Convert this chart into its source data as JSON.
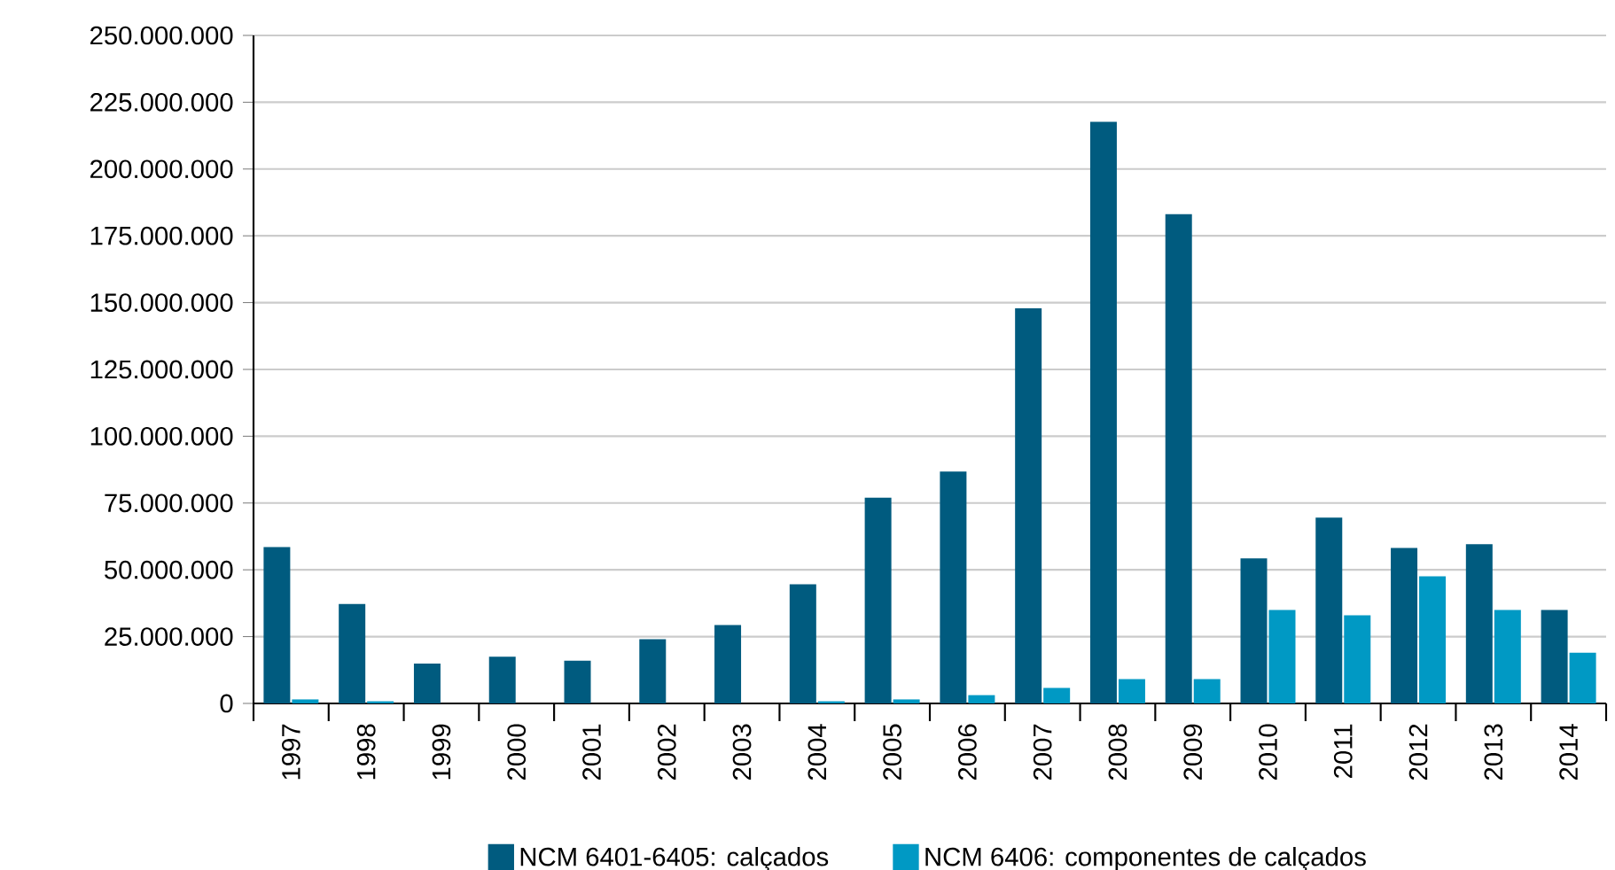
{
  "chart_data": {
    "type": "bar",
    "categories": [
      "1997",
      "1998",
      "1999",
      "2000",
      "2001",
      "2002",
      "2003",
      "2004",
      "2005",
      "2006",
      "2007",
      "2008",
      "2009",
      "2010",
      "2011",
      "2012",
      "2013",
      "2014"
    ],
    "series": [
      {
        "name": "NCM 6401-6405: calçados",
        "color": "#005b7f",
        "values": [
          58500000,
          37200000,
          14900000,
          17500000,
          16000000,
          24000000,
          29300000,
          44600000,
          77000000,
          86800000,
          147900000,
          217700000,
          183100000,
          54300000,
          69500000,
          58200000,
          59600000,
          35000000
        ]
      },
      {
        "name": "NCM 6406: componentes de calçados",
        "color": "#0099c4",
        "values": [
          1500000,
          800000,
          0,
          0,
          0,
          0,
          0,
          800000,
          1500000,
          3100000,
          5800000,
          9100000,
          9100000,
          35000000,
          33000000,
          47600000,
          35000000,
          19000000
        ]
      }
    ],
    "ylim": [
      0,
      250000000
    ],
    "yticks": [
      {
        "value": 0,
        "label": "0"
      },
      {
        "value": 25000000,
        "label": "25.000.000"
      },
      {
        "value": 50000000,
        "label": "50.000.000"
      },
      {
        "value": 75000000,
        "label": "75.000.000"
      },
      {
        "value": 100000000,
        "label": "100.000.000"
      },
      {
        "value": 125000000,
        "label": "125.000.000"
      },
      {
        "value": 150000000,
        "label": "150.000.000"
      },
      {
        "value": 175000000,
        "label": "175.000.000"
      },
      {
        "value": 200000000,
        "label": "200.000.000"
      },
      {
        "value": 225000000,
        "label": "225.000.000"
      },
      {
        "value": 250000000,
        "label": "250.000.000"
      }
    ],
    "grid": "y",
    "legend": "bottom"
  }
}
